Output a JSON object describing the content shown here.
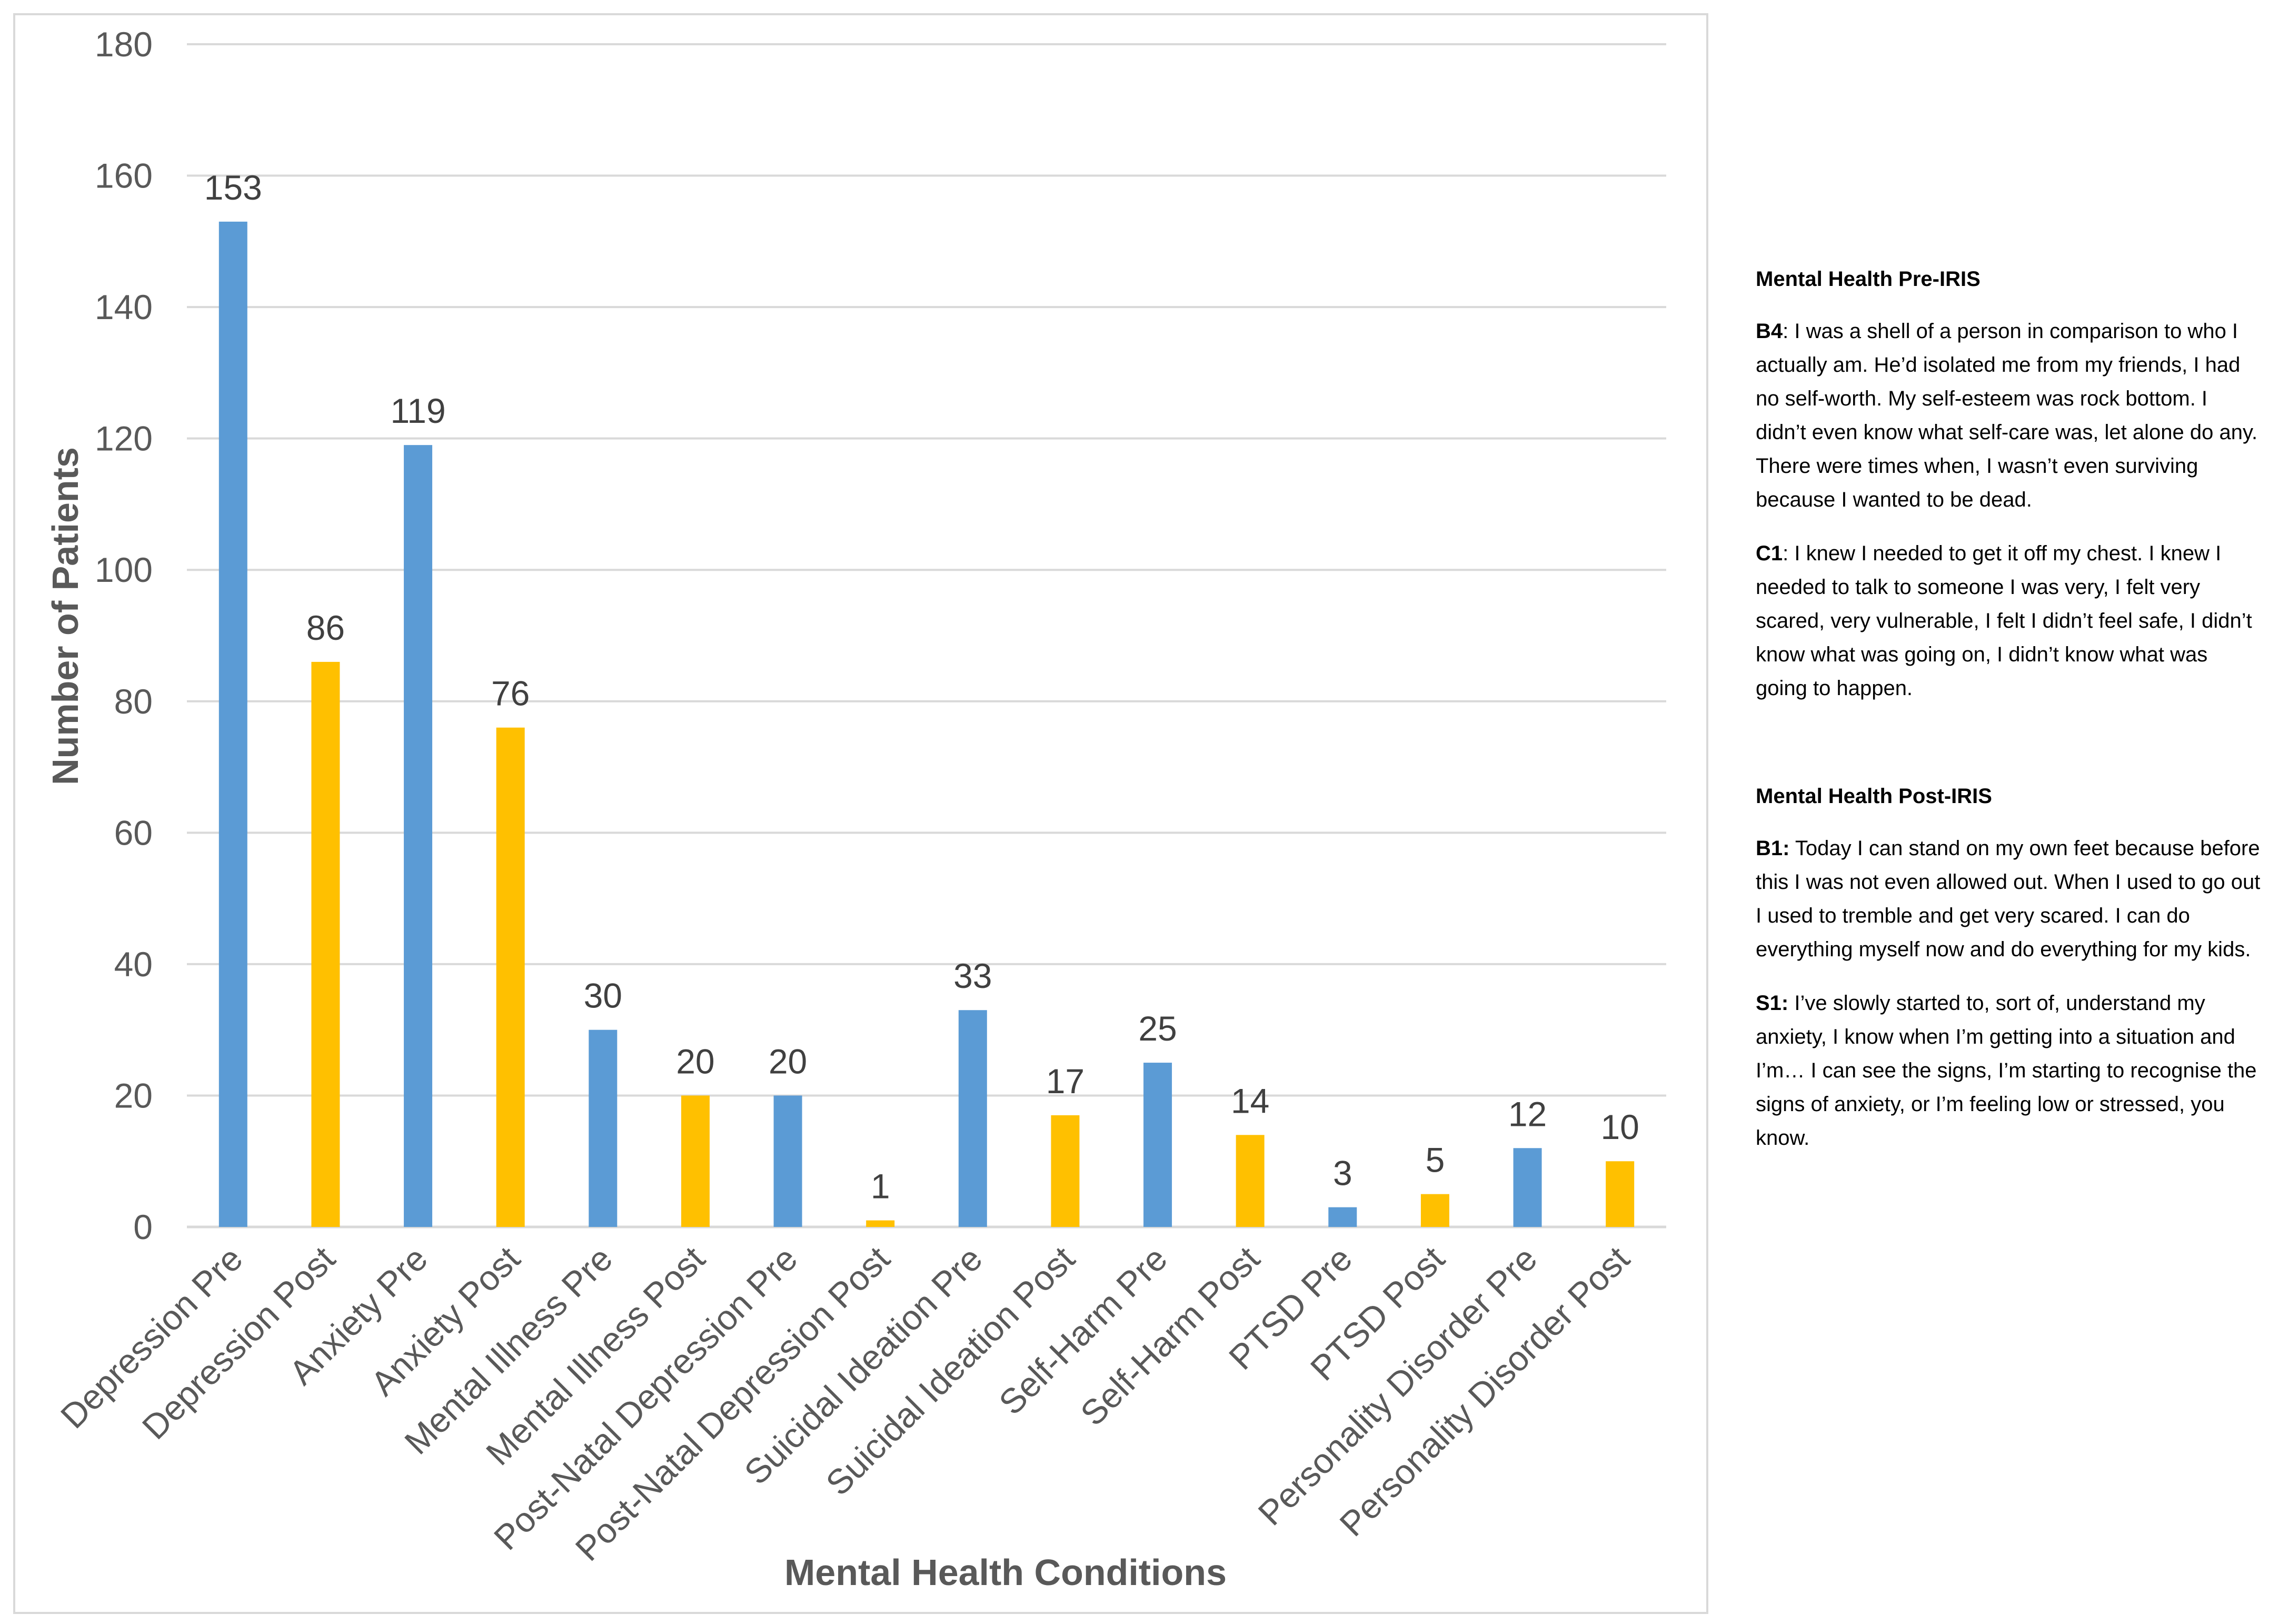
{
  "chart_data": {
    "type": "bar",
    "title": "",
    "xlabel": "Mental Health Conditions",
    "ylabel": "Number of Patients",
    "ylim": [
      0,
      180
    ],
    "yticks": [
      0,
      20,
      40,
      60,
      80,
      100,
      120,
      140,
      160,
      180
    ],
    "grid": true,
    "categories": [
      "Depression Pre",
      "Depression Post",
      "Anxiety Pre",
      "Anxiety Post",
      "Mental Illness Pre",
      "Mental Illness Post",
      "Post-Natal Depression Pre",
      "Post-Natal Depression Post",
      "Suicidal Ideation Pre",
      "Suicidal Ideation Post",
      "Self-Harm Pre",
      "Self-Harm Post",
      "PTSD Pre",
      "PTSD  Post",
      "Personality Disorder Pre",
      "Personality Disorder Post"
    ],
    "values": [
      153,
      86,
      119,
      76,
      30,
      20,
      20,
      1,
      33,
      17,
      25,
      14,
      3,
      5,
      12,
      10
    ],
    "bar_colors": [
      "#5b9bd5",
      "#ffc000",
      "#5b9bd5",
      "#ffc000",
      "#5b9bd5",
      "#ffc000",
      "#5b9bd5",
      "#ffc000",
      "#5b9bd5",
      "#ffc000",
      "#5b9bd5",
      "#ffc000",
      "#5b9bd5",
      "#ffc000",
      "#5b9bd5",
      "#ffc000"
    ]
  },
  "colors": {
    "pre": "#5b9bd5",
    "post": "#ffc000",
    "grid": "#d9d9d9",
    "text": "#595959"
  },
  "quotes": {
    "pre": {
      "heading": "Mental Health Pre-IRIS",
      "items": [
        {
          "speaker": "B4",
          "sep": ":",
          "text": " I was a shell of a person in comparison to who I actually am. He’d isolated me from my friends, I had no self-worth. My self-esteem was rock bottom. I didn’t even know what self-care was, let alone do any. There were times when, I wasn’t even surviving because I wanted to be dead."
        },
        {
          "speaker": "C1",
          "sep": ":",
          "text": " I knew I needed to get it off my chest. I knew I needed to talk to someone I was very, I felt very scared, very vulnerable, I felt I didn’t feel safe, I didn’t know what was going on, I didn’t know what was going to happen."
        }
      ]
    },
    "post": {
      "heading": "Mental Health Post-IRIS",
      "items": [
        {
          "speaker": "B1:",
          "sep": "",
          "text": " Today I can stand on my own feet because before this I was not even allowed out. When I used to go out I used to tremble and get very scared. I can do everything myself now and do everything for my kids."
        },
        {
          "speaker": "S1:",
          "sep": "",
          "text": " I’ve slowly started to, sort of, understand my anxiety, I know when I’m getting into a situation and I’m… I can see the signs, I’m starting to recognise the signs of anxiety, or I’m feeling low or stressed, you know."
        }
      ]
    }
  }
}
